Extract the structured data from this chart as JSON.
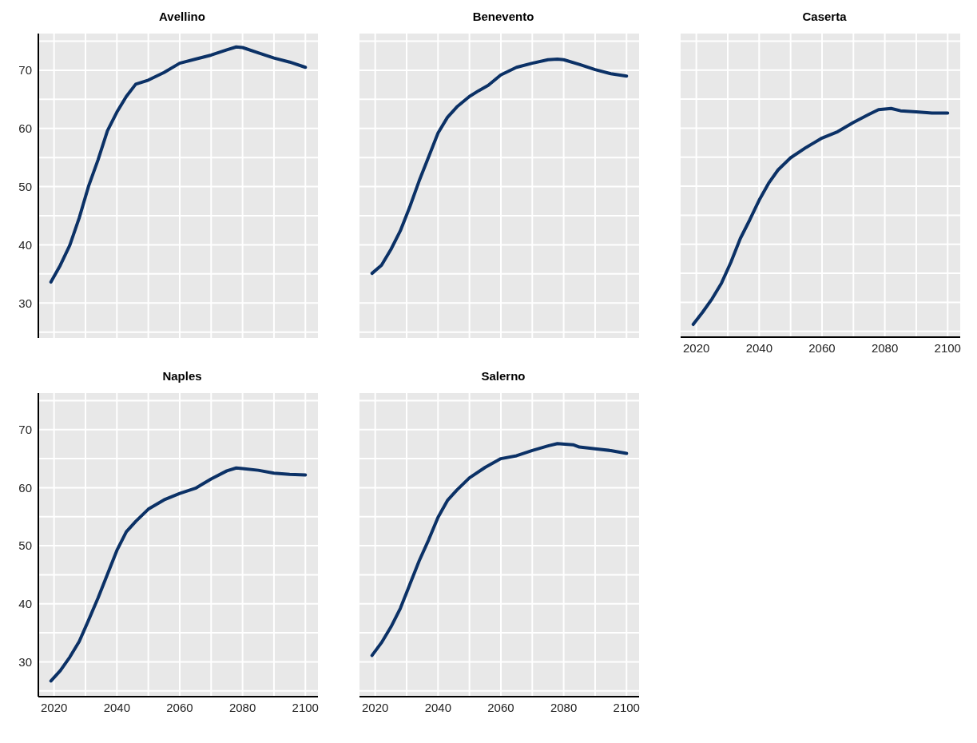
{
  "chart_data": [
    {
      "type": "line",
      "title": "Avellino",
      "tick_labels": "y",
      "grid": true,
      "xlim": [
        2015,
        2104
      ],
      "ylim": [
        24,
        76.3
      ],
      "xticks": [
        2020,
        {
          "value": 2030,
          "label": null
        },
        2040,
        {
          "value": 2050,
          "label": null
        },
        2060,
        {
          "value": 2070,
          "label": null
        },
        2080,
        {
          "value": 2090,
          "label": null
        },
        2100
      ],
      "yticks": [
        {
          "value": 25,
          "label": null
        },
        30,
        {
          "value": 35,
          "label": null
        },
        40,
        {
          "value": 45,
          "label": null
        },
        50,
        {
          "value": 55,
          "label": null
        },
        60,
        {
          "value": 65,
          "label": null
        },
        70,
        {
          "value": 75,
          "label": null
        }
      ],
      "x": [
        2019,
        2022,
        2025,
        2028,
        2031,
        2034,
        2037,
        2040,
        2043,
        2046,
        2050,
        2055,
        2060,
        2065,
        2070,
        2075,
        2078,
        2080,
        2085,
        2090,
        2095,
        2100
      ],
      "series": [
        {
          "color": "#0b3166",
          "values": [
            33.6,
            36.5,
            39.9,
            44.6,
            50.1,
            54.6,
            59.6,
            62.8,
            65.5,
            67.6,
            68.3,
            69.6,
            71.2,
            71.9,
            72.6,
            73.5,
            74.0,
            73.9,
            73.0,
            72.1,
            71.4,
            70.5
          ]
        }
      ]
    },
    {
      "type": "line",
      "title": "Benevento",
      "tick_labels": false,
      "grid": true,
      "xlim": [
        2015,
        2104
      ],
      "ylim": [
        24,
        76.3
      ],
      "xticks": [
        2020,
        {
          "value": 2030,
          "label": null
        },
        2040,
        {
          "value": 2050,
          "label": null
        },
        2060,
        {
          "value": 2070,
          "label": null
        },
        2080,
        {
          "value": 2090,
          "label": null
        },
        2100
      ],
      "yticks": [
        {
          "value": 25,
          "label": null
        },
        30,
        {
          "value": 35,
          "label": null
        },
        40,
        {
          "value": 45,
          "label": null
        },
        50,
        {
          "value": 55,
          "label": null
        },
        60,
        {
          "value": 65,
          "label": null
        },
        70,
        {
          "value": 75,
          "label": null
        }
      ],
      "x": [
        2019,
        2022,
        2025,
        2028,
        2031,
        2034,
        2037,
        2040,
        2043,
        2046,
        2050,
        2053,
        2056,
        2060,
        2065,
        2070,
        2075,
        2078,
        2080,
        2085,
        2090,
        2095,
        2100
      ],
      "series": [
        {
          "color": "#0b3166",
          "values": [
            35.1,
            36.5,
            39.2,
            42.4,
            46.5,
            51.0,
            55.1,
            59.2,
            61.9,
            63.7,
            65.5,
            66.5,
            67.4,
            69.2,
            70.5,
            71.2,
            71.8,
            71.9,
            71.8,
            71.0,
            70.1,
            69.4,
            69.0
          ]
        }
      ]
    },
    {
      "type": "line",
      "title": "Caserta",
      "tick_labels": "x",
      "grid": true,
      "xlim": [
        2015,
        2104
      ],
      "ylim": [
        24,
        76.3
      ],
      "xticks": [
        2020,
        {
          "value": 2030,
          "label": null
        },
        2040,
        {
          "value": 2050,
          "label": null
        },
        2060,
        {
          "value": 2070,
          "label": null
        },
        2080,
        {
          "value": 2090,
          "label": null
        },
        2100
      ],
      "yticks": [
        {
          "value": 25,
          "label": null
        },
        30,
        {
          "value": 35,
          "label": null
        },
        40,
        {
          "value": 45,
          "label": null
        },
        50,
        {
          "value": 55,
          "label": null
        },
        60,
        {
          "value": 65,
          "label": null
        },
        70,
        {
          "value": 75,
          "label": null
        }
      ],
      "x": [
        2019,
        2022,
        2025,
        2028,
        2031,
        2034,
        2037,
        2040,
        2043,
        2046,
        2050,
        2055,
        2060,
        2065,
        2070,
        2075,
        2078,
        2082,
        2085,
        2090,
        2095,
        2100
      ],
      "series": [
        {
          "color": "#0b3166",
          "values": [
            26.2,
            28.3,
            30.6,
            33.3,
            36.9,
            41.0,
            44.2,
            47.6,
            50.5,
            52.8,
            54.9,
            56.7,
            58.3,
            59.4,
            61.0,
            62.4,
            63.2,
            63.4,
            63.0,
            62.8,
            62.6,
            62.6
          ]
        }
      ]
    },
    {
      "type": "line",
      "title": "Naples",
      "grid": true,
      "xlim": [
        2015,
        2104
      ],
      "ylim": [
        24,
        76.3
      ],
      "xticks": [
        2020,
        {
          "value": 2030,
          "label": null
        },
        2040,
        {
          "value": 2050,
          "label": null
        },
        2060,
        {
          "value": 2070,
          "label": null
        },
        2080,
        {
          "value": 2090,
          "label": null
        },
        2100
      ],
      "yticks": [
        {
          "value": 25,
          "label": null
        },
        30,
        {
          "value": 35,
          "label": null
        },
        40,
        {
          "value": 45,
          "label": null
        },
        50,
        {
          "value": 55,
          "label": null
        },
        60,
        {
          "value": 65,
          "label": null
        },
        70,
        {
          "value": 75,
          "label": null
        }
      ],
      "x": [
        2019,
        2022,
        2025,
        2028,
        2031,
        2034,
        2037,
        2040,
        2043,
        2046,
        2050,
        2055,
        2060,
        2065,
        2070,
        2075,
        2078,
        2080,
        2085,
        2090,
        2095,
        2100
      ],
      "series": [
        {
          "color": "#0b3166",
          "values": [
            26.7,
            28.5,
            30.8,
            33.5,
            37.2,
            41.0,
            45.1,
            49.2,
            52.4,
            54.2,
            56.3,
            57.9,
            59.0,
            59.9,
            61.5,
            62.9,
            63.4,
            63.3,
            63.0,
            62.5,
            62.3,
            62.2
          ]
        }
      ]
    },
    {
      "type": "line",
      "title": "Salerno",
      "tick_labels": "x",
      "grid": true,
      "xlim": [
        2015,
        2104
      ],
      "ylim": [
        24,
        76.3
      ],
      "xticks": [
        2020,
        {
          "value": 2030,
          "label": null
        },
        2040,
        {
          "value": 2050,
          "label": null
        },
        2060,
        {
          "value": 2070,
          "label": null
        },
        2080,
        {
          "value": 2090,
          "label": null
        },
        2100
      ],
      "yticks": [
        {
          "value": 25,
          "label": null
        },
        30,
        {
          "value": 35,
          "label": null
        },
        40,
        {
          "value": 45,
          "label": null
        },
        50,
        {
          "value": 55,
          "label": null
        },
        60,
        {
          "value": 65,
          "label": null
        },
        70,
        {
          "value": 75,
          "label": null
        }
      ],
      "x": [
        2019,
        2022,
        2025,
        2028,
        2031,
        2034,
        2037,
        2040,
        2043,
        2046,
        2050,
        2055,
        2060,
        2065,
        2070,
        2075,
        2078,
        2083,
        2085,
        2090,
        2095,
        2100
      ],
      "series": [
        {
          "color": "#0b3166",
          "values": [
            31.1,
            33.3,
            36.0,
            39.2,
            43.3,
            47.4,
            51.0,
            54.9,
            57.8,
            59.6,
            61.7,
            63.5,
            65.0,
            65.5,
            66.4,
            67.2,
            67.6,
            67.4,
            67.0,
            66.7,
            66.4,
            65.9
          ]
        }
      ]
    }
  ]
}
